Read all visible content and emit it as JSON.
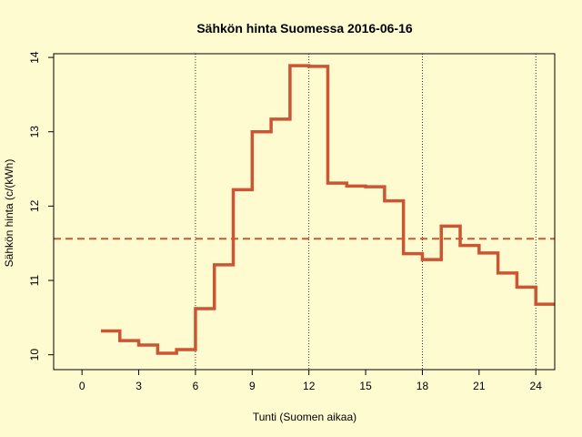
{
  "chart_data": {
    "type": "line",
    "step": true,
    "title": "Sähkön hinta Suomessa 2016-06-16",
    "xlabel": "Tunti (Suomen aikaa)",
    "ylabel": "Sähkön hinta (c/(kWh)",
    "xlim": [
      -1.5,
      25
    ],
    "ylim": [
      9.8,
      14.05
    ],
    "xticks": [
      0,
      3,
      6,
      9,
      12,
      15,
      18,
      21,
      24
    ],
    "yticks": [
      10,
      11,
      12,
      13,
      14
    ],
    "vlines": [
      6,
      12,
      18,
      24
    ],
    "series": [
      {
        "x": [
          1,
          2,
          3,
          4,
          5,
          6,
          7,
          8,
          9,
          10,
          11,
          12,
          13,
          14,
          15,
          16,
          17,
          18,
          19,
          20,
          21,
          22,
          23,
          24,
          25
        ],
        "values": [
          10.32,
          10.19,
          10.13,
          10.02,
          10.07,
          10.62,
          11.21,
          12.22,
          13.0,
          13.17,
          13.89,
          13.88,
          12.31,
          12.27,
          12.26,
          12.07,
          11.36,
          11.28,
          11.73,
          11.47,
          11.37,
          11.1,
          10.91,
          10.68,
          10.68
        ],
        "color": "#cc5533"
      }
    ],
    "mean": 11.56,
    "mean_color": "#cc5533",
    "grid": false,
    "background": "#fffbd0"
  }
}
